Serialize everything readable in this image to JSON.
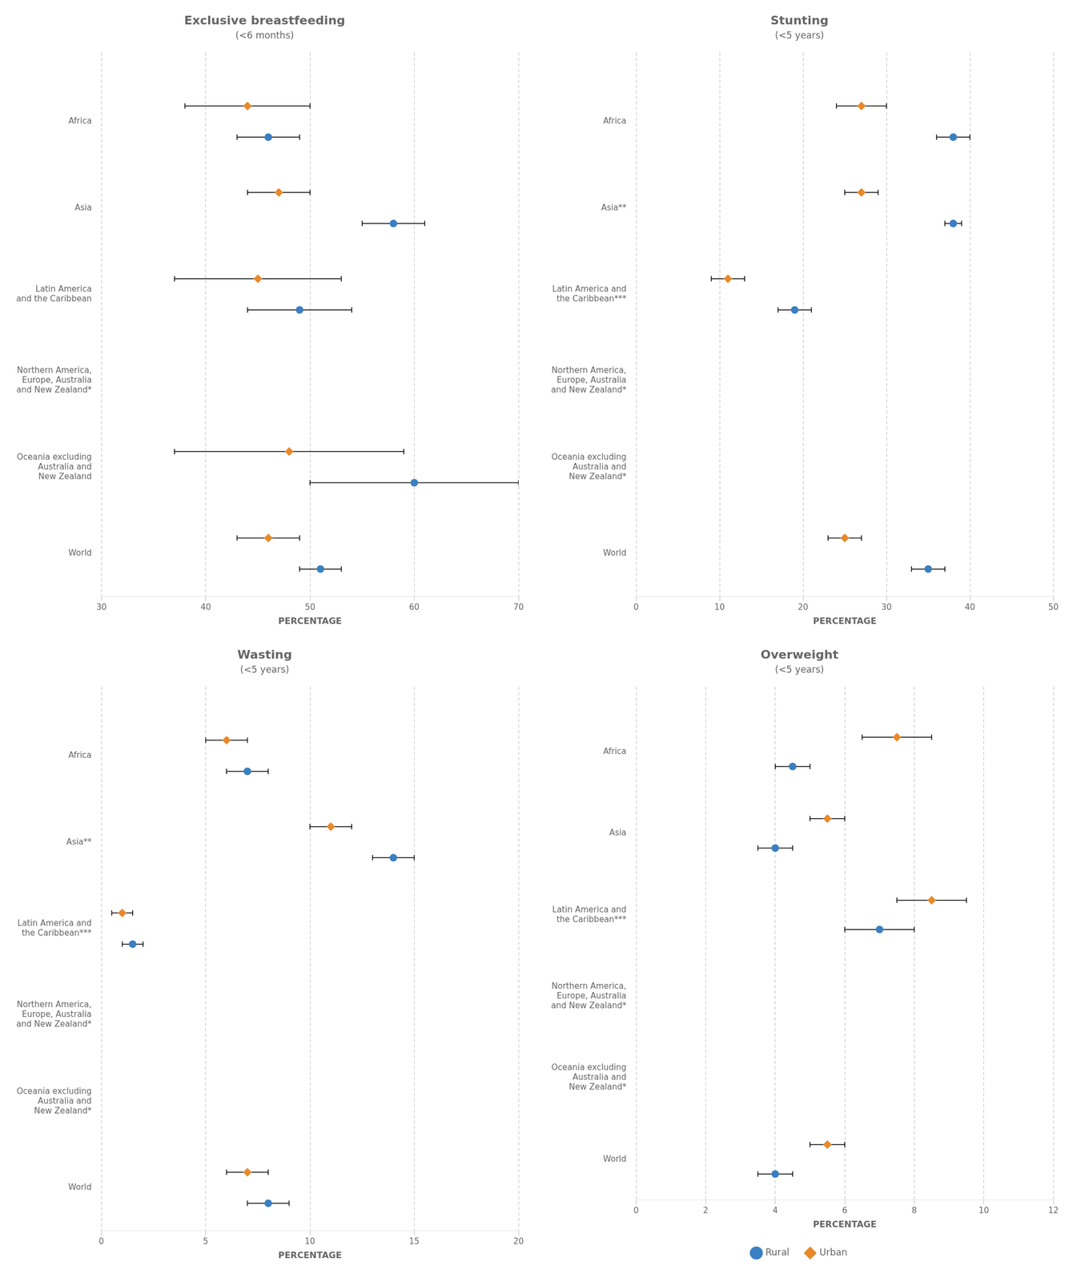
{
  "chart_data": [
    {
      "type": "dot",
      "orientation": "horizontal",
      "title": "Exclusive breastfeeding",
      "subtitle": "(<6 months)",
      "xlabel": "PERCENTAGE",
      "xlim": [
        30,
        70
      ],
      "xticks": [
        30,
        40,
        50,
        60,
        70
      ],
      "grid": true,
      "categories": [
        "Africa",
        "Asia",
        "Latin America\nand the Caribbean",
        "Northern America,\nEurope, Australia\nand New Zealand*",
        "Oceania excluding\nAustralia and\nNew Zealand",
        "World"
      ],
      "series": [
        {
          "name": "Rural",
          "color": "#3A7FC1",
          "marker": "circle",
          "values": [
            46,
            58,
            49,
            null,
            60,
            51
          ],
          "error_low": [
            43,
            55,
            44,
            null,
            50,
            49
          ],
          "error_high": [
            49,
            61,
            54,
            null,
            70,
            53
          ]
        },
        {
          "name": "Urban",
          "color": "#E8892A",
          "marker": "diamond",
          "values": [
            44,
            47,
            45,
            null,
            48,
            46
          ],
          "error_low": [
            38,
            44,
            37,
            null,
            37,
            43
          ],
          "error_high": [
            50,
            50,
            53,
            null,
            59,
            49
          ]
        }
      ]
    },
    {
      "type": "dot",
      "orientation": "horizontal",
      "title": "Stunting",
      "subtitle": "(<5 years)",
      "xlabel": "PERCENTAGE",
      "xlim": [
        0,
        50
      ],
      "xticks": [
        0,
        10,
        20,
        30,
        40,
        50
      ],
      "grid": true,
      "categories": [
        "Africa",
        "Asia**",
        "Latin America and\nthe Caribbean***",
        "Northern America,\nEurope, Australia\nand New Zealand*",
        "Oceania excluding\nAustralia and\nNew Zealand*",
        "World"
      ],
      "series": [
        {
          "name": "Rural",
          "color": "#3A7FC1",
          "marker": "circle",
          "values": [
            38,
            38,
            19,
            null,
            null,
            35
          ],
          "error_low": [
            36,
            37,
            17,
            null,
            null,
            33
          ],
          "error_high": [
            40,
            39,
            21,
            null,
            null,
            37
          ]
        },
        {
          "name": "Urban",
          "color": "#E8892A",
          "marker": "diamond",
          "values": [
            27,
            27,
            11,
            null,
            null,
            25
          ],
          "error_low": [
            24,
            25,
            9,
            null,
            null,
            23
          ],
          "error_high": [
            30,
            29,
            13,
            null,
            null,
            27
          ]
        }
      ]
    },
    {
      "type": "dot",
      "orientation": "horizontal",
      "title": "Wasting",
      "subtitle": "(<5 years)",
      "xlabel": "PERCENTAGE",
      "xlim": [
        0,
        20
      ],
      "xticks": [
        0,
        5,
        10,
        15,
        20
      ],
      "grid": true,
      "categories": [
        "Africa",
        "Asia**",
        "Latin America and\nthe Caribbean***",
        "Northern America,\nEurope, Australia\nand New Zealand*",
        "Oceania excluding\nAustralia and\nNew Zealand*",
        "World"
      ],
      "series": [
        {
          "name": "Rural",
          "color": "#3A7FC1",
          "marker": "circle",
          "values": [
            7,
            14,
            1.5,
            null,
            null,
            8
          ],
          "error_low": [
            6,
            13,
            1.0,
            null,
            null,
            7
          ],
          "error_high": [
            8,
            15,
            2.0,
            null,
            null,
            9
          ]
        },
        {
          "name": "Urban",
          "color": "#E8892A",
          "marker": "diamond",
          "values": [
            6,
            11,
            1.0,
            null,
            null,
            7
          ],
          "error_low": [
            5,
            10,
            0.5,
            null,
            null,
            6
          ],
          "error_high": [
            7,
            12,
            1.5,
            null,
            null,
            8
          ]
        }
      ]
    },
    {
      "type": "dot",
      "orientation": "horizontal",
      "title": "Overweight",
      "subtitle": "(<5 years)",
      "xlabel": "PERCENTAGE",
      "xlim": [
        0,
        12
      ],
      "xticks": [
        0,
        2,
        4,
        6,
        8,
        10,
        12
      ],
      "grid": true,
      "legend": "bottom",
      "categories": [
        "Africa",
        "Asia",
        "Latin America and\nthe Caribbean***",
        "Northern America,\nEurope, Australia\nand New Zealand*",
        "Oceania excluding\nAustralia and\nNew Zealand*",
        "World"
      ],
      "series": [
        {
          "name": "Rural",
          "color": "#3A7FC1",
          "marker": "circle",
          "values": [
            4.5,
            4.0,
            7.0,
            null,
            null,
            4.0
          ],
          "error_low": [
            4.0,
            3.5,
            6.0,
            null,
            null,
            3.5
          ],
          "error_high": [
            5.0,
            4.5,
            8.0,
            null,
            null,
            4.5
          ]
        },
        {
          "name": "Urban",
          "color": "#E8892A",
          "marker": "diamond",
          "values": [
            7.5,
            5.5,
            8.5,
            null,
            null,
            5.5
          ],
          "error_low": [
            6.5,
            5.0,
            7.5,
            null,
            null,
            5.0
          ],
          "error_high": [
            8.5,
            6.0,
            9.5,
            null,
            null,
            6.0
          ]
        }
      ]
    }
  ]
}
